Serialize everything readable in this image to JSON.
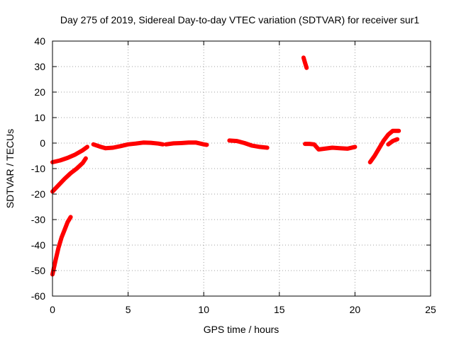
{
  "chart_data": {
    "type": "scatter",
    "title": "Day 275 of 2019, Sidereal Day-to-day VTEC variation (SDTVAR) for receiver sur1",
    "xlabel": "GPS time / hours",
    "ylabel": "SDTVAR / TECUs",
    "xlim": [
      0,
      25
    ],
    "ylim": [
      -60,
      40
    ],
    "xticks": [
      "0",
      "5",
      "10",
      "15",
      "20",
      "25"
    ],
    "yticks": [
      "40",
      "30",
      "20",
      "10",
      "0",
      "-10",
      "-20",
      "-30",
      "-40",
      "-50",
      "-60"
    ],
    "grid": true,
    "color": "#ff0000",
    "series": [
      {
        "points": [
          [
            0,
            -7.5
          ],
          [
            0.5,
            -6.8
          ],
          [
            1.0,
            -5.8
          ],
          [
            1.5,
            -4.5
          ],
          [
            2.0,
            -2.8
          ],
          [
            2.3,
            -1.5
          ]
        ]
      },
      {
        "points": [
          [
            0,
            -19
          ],
          [
            0.4,
            -16.5
          ],
          [
            0.8,
            -14
          ],
          [
            1.2,
            -11.8
          ],
          [
            1.6,
            -10
          ],
          [
            2.0,
            -7.8
          ],
          [
            2.2,
            -6
          ]
        ]
      },
      {
        "points": [
          [
            0,
            -51.5
          ],
          [
            0.2,
            -46
          ],
          [
            0.4,
            -41
          ],
          [
            0.6,
            -37
          ],
          [
            0.8,
            -34
          ],
          [
            1.0,
            -31
          ],
          [
            1.2,
            -29
          ]
        ]
      },
      {
        "points": [
          [
            2.7,
            -0.5
          ],
          [
            3.2,
            -1.5
          ],
          [
            3.5,
            -2
          ],
          [
            4.0,
            -1.8
          ],
          [
            4.5,
            -1.2
          ],
          [
            5.0,
            -0.5
          ],
          [
            5.5,
            -0.2
          ],
          [
            6.0,
            0.2
          ],
          [
            6.5,
            0.1
          ],
          [
            7.0,
            -0.2
          ],
          [
            7.3,
            -0.5
          ]
        ]
      },
      {
        "points": [
          [
            7.5,
            -0.5
          ],
          [
            8.0,
            -0.1
          ],
          [
            8.5,
            0
          ],
          [
            9.0,
            0.2
          ],
          [
            9.5,
            0.2
          ],
          [
            10.0,
            -0.5
          ],
          [
            10.2,
            -0.7
          ]
        ]
      },
      {
        "points": [
          [
            11.7,
            1
          ],
          [
            12.2,
            0.8
          ],
          [
            12.7,
            0
          ],
          [
            13.2,
            -1
          ],
          [
            13.7,
            -1.5
          ],
          [
            14.2,
            -1.8
          ]
        ]
      },
      {
        "points": [
          [
            16.6,
            33.5
          ],
          [
            16.7,
            31.5
          ],
          [
            16.8,
            29.5
          ]
        ]
      },
      {
        "points": [
          [
            16.7,
            -0.3
          ],
          [
            17.0,
            -0.3
          ],
          [
            17.3,
            -0.5
          ],
          [
            17.6,
            -2.5
          ],
          [
            18.0,
            -2.2
          ],
          [
            18.5,
            -1.8
          ],
          [
            19.0,
            -2
          ],
          [
            19.5,
            -2.2
          ],
          [
            20.0,
            -1.5
          ]
        ]
      },
      {
        "points": [
          [
            21.0,
            -7.5
          ],
          [
            21.3,
            -5
          ],
          [
            21.6,
            -2
          ],
          [
            21.9,
            1
          ],
          [
            22.2,
            3.3
          ],
          [
            22.5,
            4.8
          ],
          [
            22.9,
            4.8
          ]
        ]
      },
      {
        "points": [
          [
            22.2,
            -0.5
          ],
          [
            22.5,
            0.8
          ],
          [
            22.8,
            1.5
          ]
        ]
      }
    ]
  }
}
